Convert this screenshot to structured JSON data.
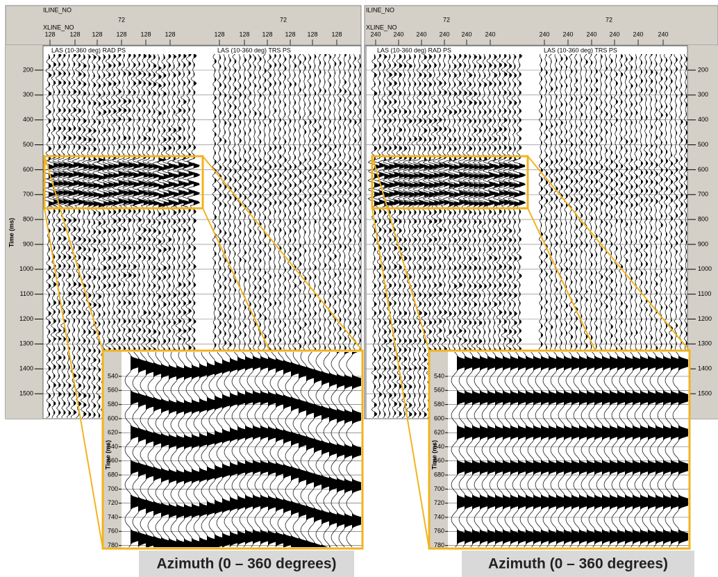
{
  "time_axis_label": "Time (ms)",
  "panels": [
    {
      "iline_label": "ILINE_NO",
      "iline_values": [
        "72",
        "72"
      ],
      "xline_label": "XLINE_NO",
      "xline_values": [
        "128",
        "128",
        "128",
        "128",
        "128",
        "128",
        "128",
        "128",
        "128",
        "128",
        "128",
        "128"
      ],
      "section_labels": [
        "LAS (10-360 deg) RAD PS",
        "LAS (10-360 deg) TRS PS"
      ],
      "time_ticks": [
        200,
        300,
        400,
        500,
        600,
        700,
        800,
        900,
        1000,
        1100,
        1200,
        1300,
        1400,
        1500
      ],
      "inset": {
        "time_axis_label": "Time (ms)",
        "time_ticks": [
          540,
          560,
          580,
          600,
          620,
          640,
          660,
          680,
          700,
          720,
          740,
          760,
          780
        ],
        "caption": "Azimuth (0 – 360 degrees)"
      }
    },
    {
      "iline_label": "ILINE_NO",
      "iline_values": [
        "72",
        "72"
      ],
      "xline_label": "XLINE_NO",
      "xline_values": [
        "240",
        "240",
        "240",
        "240",
        "240",
        "240",
        "240",
        "240",
        "240",
        "240",
        "240",
        "240"
      ],
      "section_labels": [
        "LAS (10-360 deg) RAD PS",
        "LAS (10-360 deg) TRS PS"
      ],
      "time_ticks": [
        200,
        300,
        400,
        500,
        600,
        700,
        800,
        900,
        1000,
        1100,
        1200,
        1300,
        1400,
        1500
      ],
      "inset": {
        "time_axis_label": "Time (ms)",
        "time_ticks": [
          540,
          560,
          580,
          600,
          620,
          640,
          660,
          680,
          700,
          720,
          740,
          760,
          780
        ],
        "caption": "Azimuth (0 – 360 degrees)"
      }
    }
  ]
}
